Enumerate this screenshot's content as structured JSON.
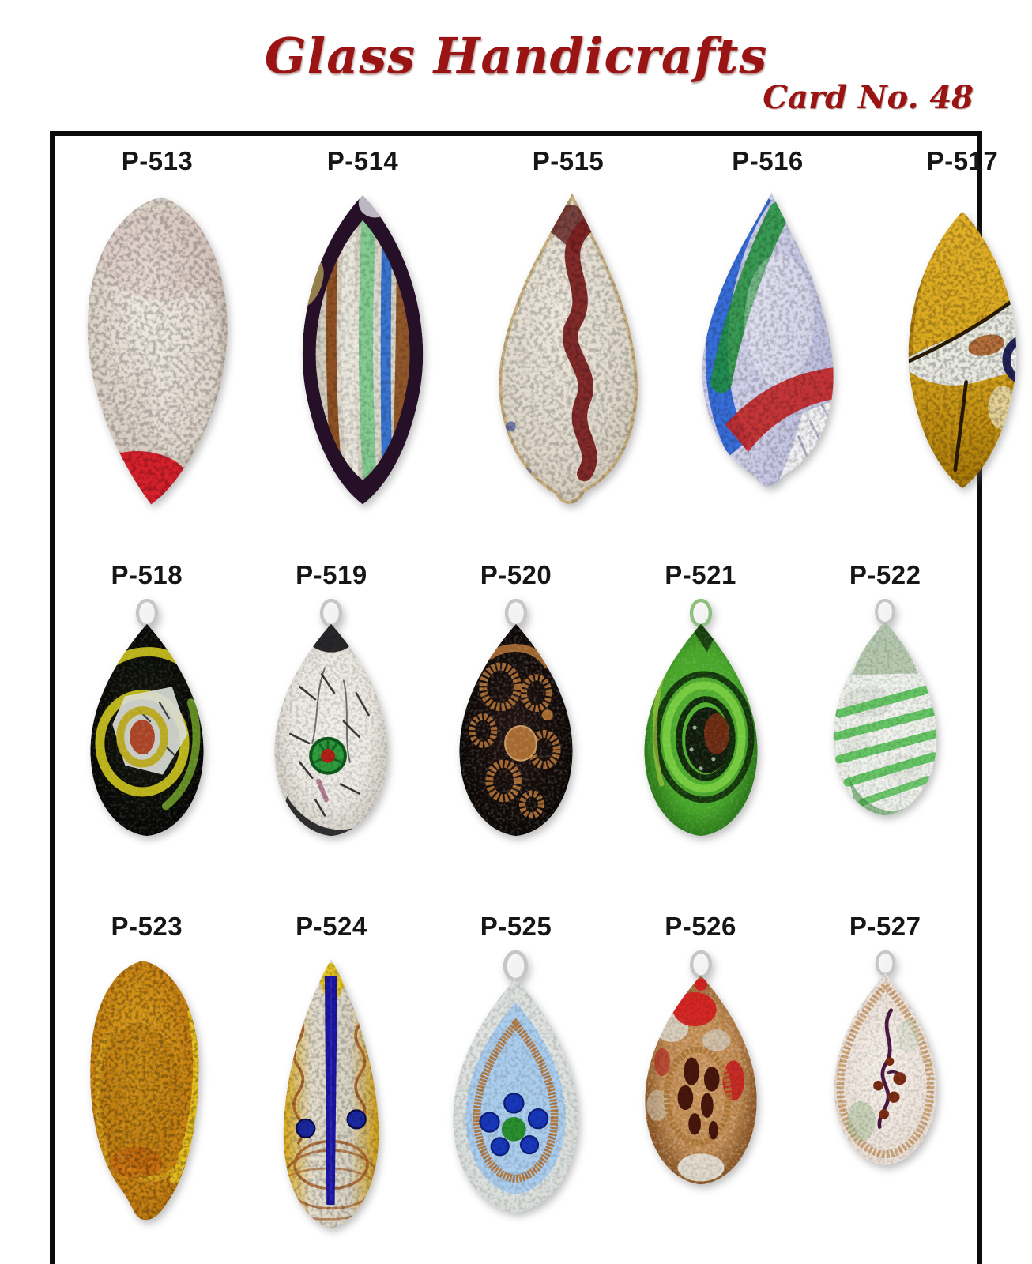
{
  "page": {
    "title": "Glass Handicrafts",
    "card_no": "Card No. 48"
  },
  "theme": {
    "title_color": "#9a1414",
    "label_color": "#161616",
    "frame_border_color": "#0c0c0c",
    "page_background": "#ffffff"
  },
  "catalog": {
    "items": [
      {
        "code": "P-513",
        "name": "silver-foil-leaf-red-tip",
        "shape": "leaf",
        "motif": "silverRedTip",
        "loop": false,
        "colors": {
          "base": "#d9cfc4",
          "tip": "#d6202c",
          "highlight": "#f3ede6"
        }
      },
      {
        "code": "P-514",
        "name": "dark-edge-striped-leaf",
        "shape": "marquise",
        "motif": "stripedLeaf",
        "loop": false,
        "colors": {
          "edge": "#251028",
          "foil": "#e9e6dc",
          "copper": "#8a4a1a",
          "green": "#7fca8e",
          "blue": "#2f6fd0"
        }
      },
      {
        "code": "P-515",
        "name": "silver-foil-maroon-swirl-drop",
        "shape": "kite",
        "motif": "snake",
        "loop": false,
        "colors": {
          "base": "#ddd6c9",
          "rim": "#c2a264",
          "snake": "#7c2121"
        }
      },
      {
        "code": "P-516",
        "name": "blue-green-red-foil-drop",
        "shape": "kite",
        "motif": "diagBands",
        "loop": false,
        "colors": {
          "base": "#d0d0ea",
          "blue": "#2b66d8",
          "green": "#1f9038",
          "red": "#c32828",
          "sparkle": "#f2f1f4"
        }
      },
      {
        "code": "P-517",
        "name": "amber-silver-band-leaf",
        "shape": "marquise",
        "motif": "amberSilver",
        "loop": false,
        "colors": {
          "amber1": "#dba91e",
          "amber2": "#a87808",
          "silver": "#e9ece9",
          "copper": "#b5703c",
          "ring": "#23235a",
          "line": "#2c1c06"
        }
      },
      {
        "code": "P-518",
        "name": "black-yellow-swirl-drop",
        "shape": "drop",
        "motif": "blackSwirl",
        "loop": true,
        "colors": {
          "base": "#0c0e08",
          "swirl": "#c3bb19",
          "green_arc": "#76a827",
          "foil": "#d8dbd4",
          "center": "#a84326"
        }
      },
      {
        "code": "P-519",
        "name": "silver-crackle-millefiori-drop",
        "shape": "drop",
        "motif": "crackleFlower",
        "loop": true,
        "colors": {
          "base": "#eceae3",
          "crackle": "#1c1c1c",
          "patch": "#141418",
          "flower": "#2f9e3f",
          "center": "#b52218"
        }
      },
      {
        "code": "P-520",
        "name": "black-copper-glitter-drop",
        "shape": "drop",
        "motif": "copperRings",
        "loop": true,
        "colors": {
          "base": "#170d0a",
          "copper": "#a5682f"
        }
      },
      {
        "code": "P-521",
        "name": "green-swirl-drop",
        "shape": "drop",
        "motif": "greenSwirl",
        "loop": true,
        "colors": {
          "outer": "#46a428",
          "dark": "#0e2a08",
          "light": "#79cc3f",
          "inner": "#0f1a0a",
          "blob": "#6e2a12",
          "loop": "#8fbf7f"
        }
      },
      {
        "code": "P-522",
        "name": "green-stripe-foil-drop",
        "shape": "drop",
        "motif": "greenStripes",
        "loop": true,
        "colors": {
          "base": "#edf0ea",
          "stripe": "#58c158",
          "tint_top": "#87a87e",
          "tint_bottom": "#3f8f3f",
          "foil": "#dfe2dc"
        }
      },
      {
        "code": "P-523",
        "name": "amber-gold-speckle-leaf",
        "shape": "leaf2",
        "motif": "amberSpeckle",
        "loop": false,
        "colors": {
          "light": "#e2a81c",
          "deep": "#a06206",
          "edge": "#ecc91f",
          "core": "#b4720a"
        }
      },
      {
        "code": "P-524",
        "name": "gold-foil-cobalt-bar-drop",
        "shape": "slender",
        "motif": "goldBlueBar",
        "loop": false,
        "colors": {
          "gold": "#d8a81a",
          "foil": "#e3ddcd",
          "copper": "#a55b22",
          "bar": "#1d17a8"
        }
      },
      {
        "code": "P-525",
        "name": "blue-dot-flower-drop",
        "shape": "drop",
        "motif": "blueFlower",
        "loop": true,
        "colors": {
          "base": "#e8ebe7",
          "inner": "#a9ccee",
          "flame": "#b5773a",
          "dots": "#1838bc",
          "center": "#2a8f2f"
        }
      },
      {
        "code": "P-526",
        "name": "copper-red-spot-drop",
        "shape": "drop",
        "motif": "redCopper",
        "loop": true,
        "colors": {
          "base": "#c08a50",
          "red": "#d62222",
          "silver": "#ddd9cf",
          "ring": "#b07a3a",
          "spots": "#401008"
        }
      },
      {
        "code": "P-527",
        "name": "vine-berry-drop",
        "shape": "drop",
        "motif": "vineBerries",
        "loop": true,
        "colors": {
          "base": "#f4ece6",
          "rim": "#c89a66",
          "vine": "#4a1640",
          "berries": "#7a2a10",
          "leaf": "#9ab88a"
        }
      }
    ]
  }
}
